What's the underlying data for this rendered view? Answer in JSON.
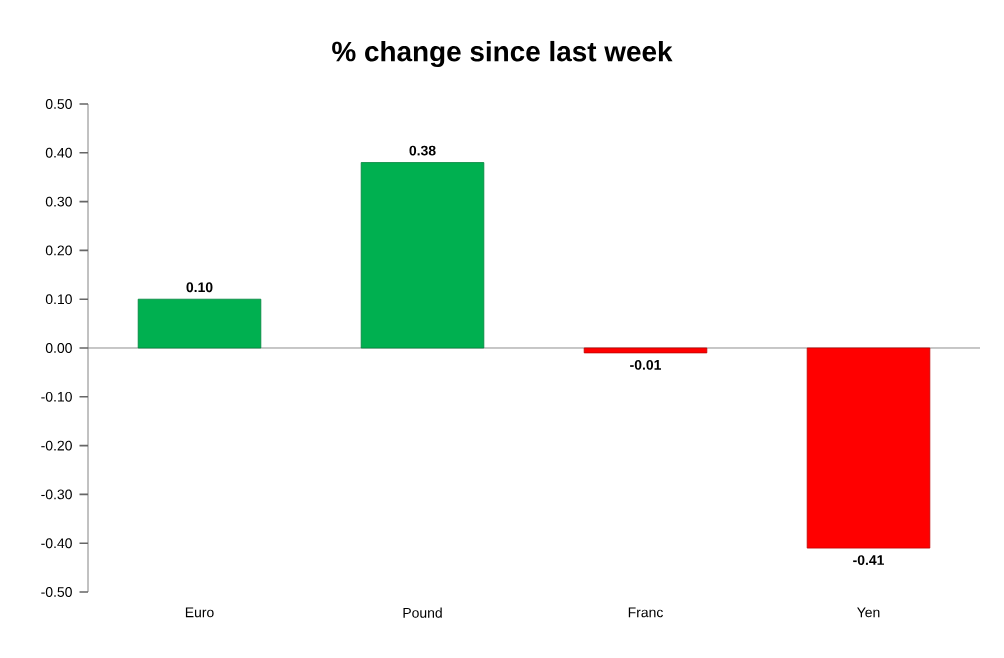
{
  "chart_data": {
    "type": "bar",
    "title": "% change since last week",
    "categories": [
      "Euro",
      "Pound",
      "Franc",
      "Yen"
    ],
    "values": [
      0.1,
      0.38,
      -0.01,
      -0.41
    ],
    "value_labels": [
      "0.10",
      "0.38",
      "-0.01",
      "-0.41"
    ],
    "colors": [
      "#00b050",
      "#00b050",
      "#ff0000",
      "#ff0000"
    ],
    "ylim": [
      -0.5,
      0.5
    ],
    "yticks": [
      {
        "value": -0.5,
        "label": "-0.50"
      },
      {
        "value": -0.4,
        "label": "-0.40"
      },
      {
        "value": -0.3,
        "label": "-0.30"
      },
      {
        "value": -0.2,
        "label": "-0.20"
      },
      {
        "value": -0.1,
        "label": "-0.10"
      },
      {
        "value": 0,
        "label": "0.00"
      },
      {
        "value": 0.1,
        "label": "0.10"
      },
      {
        "value": 0.2,
        "label": "0.20"
      },
      {
        "value": 0.3,
        "label": "0.30"
      },
      {
        "value": 0.4,
        "label": "0.40"
      },
      {
        "value": 0.5,
        "label": "0.50"
      }
    ]
  }
}
